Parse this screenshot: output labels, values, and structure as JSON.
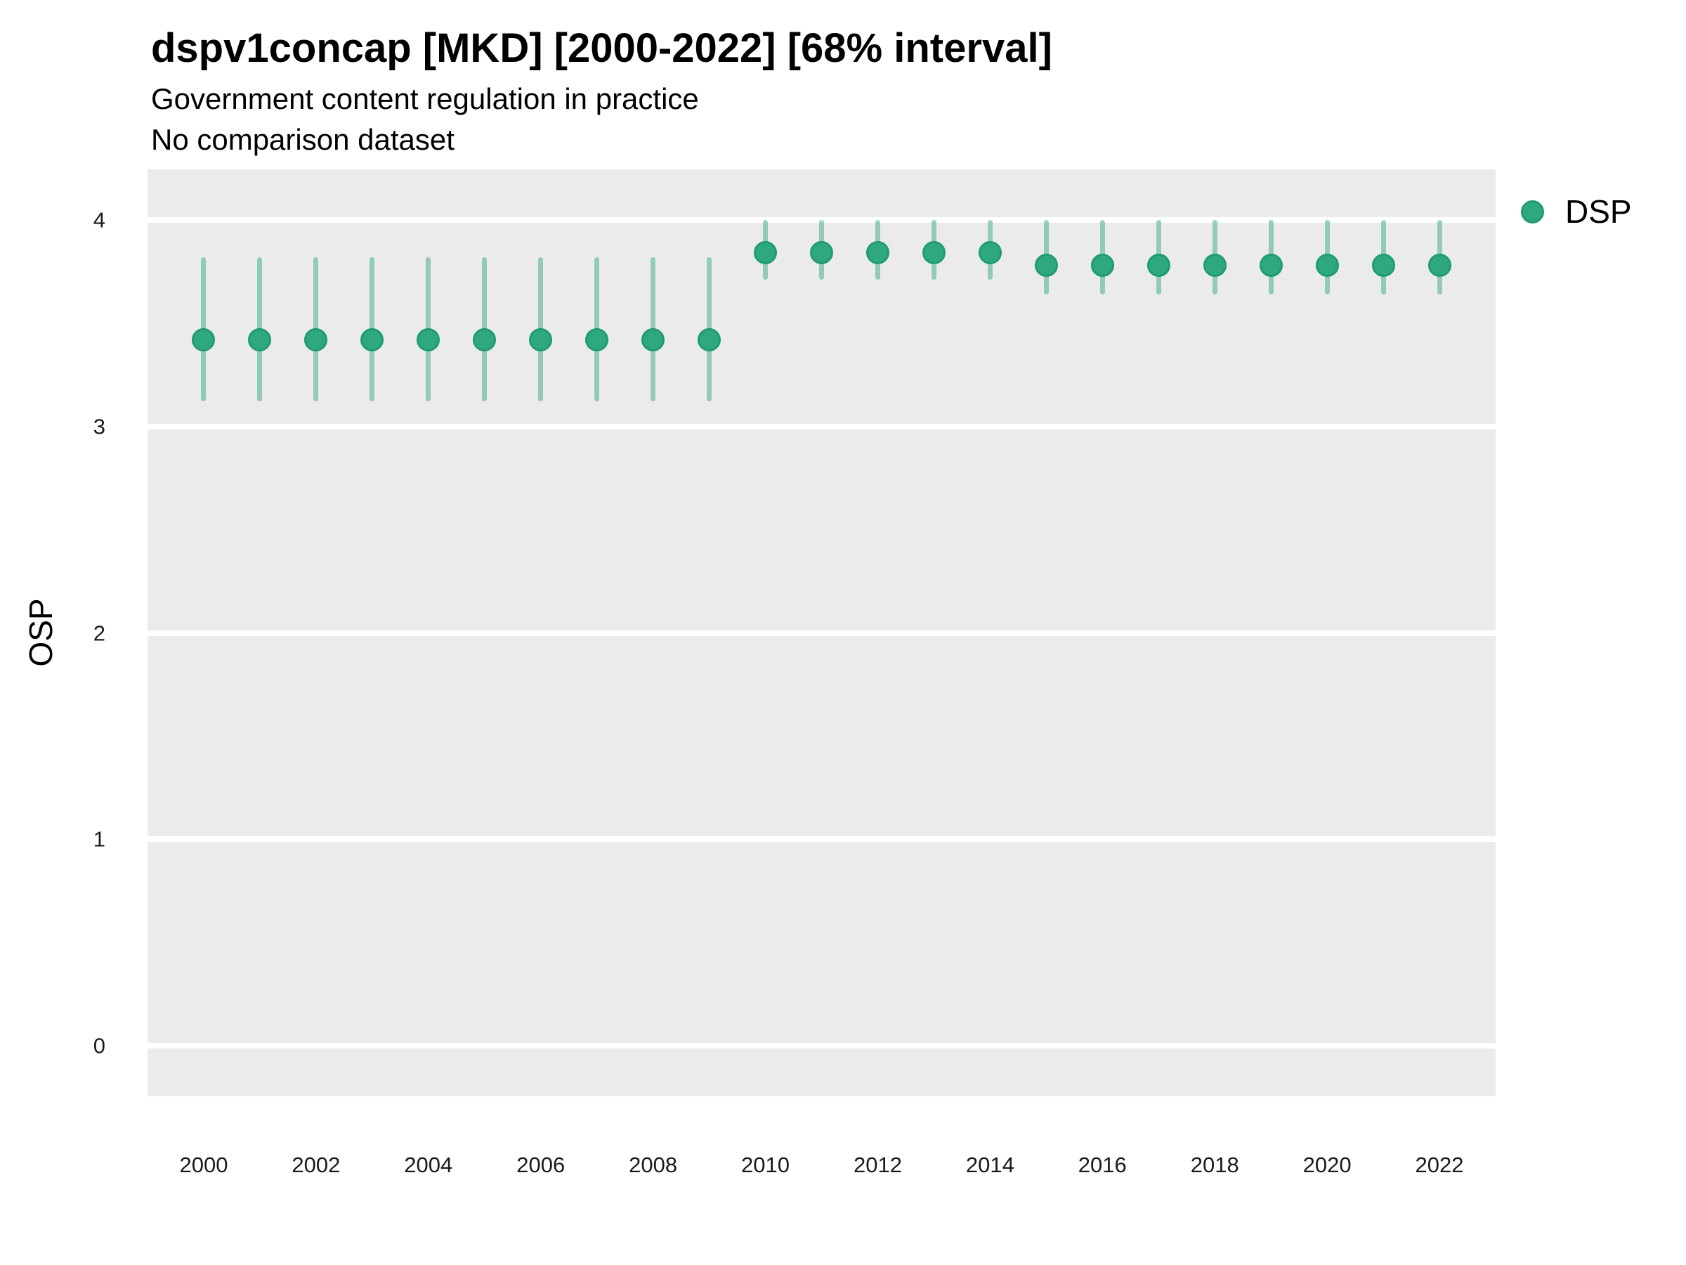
{
  "colors": {
    "background": "#ffffff",
    "panel_background": "#ebebeb",
    "gridline": "#ffffff",
    "point_fill": "#2fa87e",
    "point_stroke": "#1f9c70",
    "interval_bar": "rgba(47,168,126,0.48)"
  },
  "chart_data": {
    "type": "scatter",
    "subtype": "pointrange",
    "title": "dspv1concap [MKD] [2000-2022] [68% interval]",
    "subtitle": "Government content regulation in practice",
    "subtitle2": "No comparison dataset",
    "xlabel": "",
    "ylabel": "OSP",
    "interval_label": "68% interval",
    "legend_entries": [
      "DSP"
    ],
    "legend_position": "right",
    "grid": "horizontal-major-only",
    "x": [
      2000,
      2001,
      2002,
      2003,
      2004,
      2005,
      2006,
      2007,
      2008,
      2009,
      2010,
      2011,
      2012,
      2013,
      2014,
      2015,
      2016,
      2017,
      2018,
      2019,
      2020,
      2021,
      2022
    ],
    "series": [
      {
        "name": "DSP",
        "estimates": [
          3.42,
          3.42,
          3.42,
          3.42,
          3.42,
          3.42,
          3.42,
          3.42,
          3.42,
          3.42,
          3.84,
          3.84,
          3.84,
          3.84,
          3.84,
          3.78,
          3.78,
          3.78,
          3.78,
          3.78,
          3.78,
          3.78,
          3.78
        ],
        "lower": [
          3.12,
          3.12,
          3.12,
          3.12,
          3.12,
          3.12,
          3.12,
          3.12,
          3.12,
          3.12,
          3.71,
          3.71,
          3.71,
          3.71,
          3.71,
          3.64,
          3.64,
          3.64,
          3.64,
          3.64,
          3.64,
          3.64,
          3.64
        ],
        "upper": [
          3.82,
          3.82,
          3.82,
          3.82,
          3.82,
          3.82,
          3.82,
          3.82,
          3.82,
          3.82,
          4.0,
          4.0,
          4.0,
          4.0,
          4.0,
          4.0,
          4.0,
          4.0,
          4.0,
          4.0,
          4.0,
          4.0,
          4.0
        ]
      }
    ],
    "xticks": [
      2000,
      2002,
      2004,
      2006,
      2008,
      2010,
      2012,
      2014,
      2016,
      2018,
      2020,
      2022
    ],
    "yticks": [
      0,
      1,
      2,
      3,
      4
    ],
    "ylim": [
      0,
      4
    ],
    "x_range_expanded": [
      1999,
      2023
    ],
    "y_range_expanded": [
      -0.245,
      4.245
    ]
  }
}
